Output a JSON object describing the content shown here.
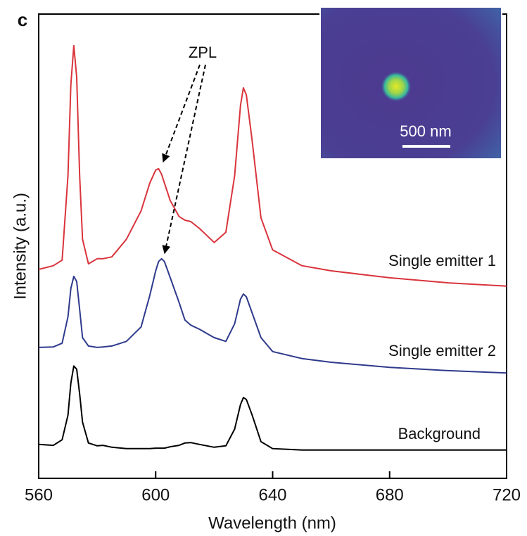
{
  "chart_data": {
    "type": "line",
    "panel_label": "c",
    "xlabel": "Wavelength (nm)",
    "ylabel": "Intensity (a.u.)",
    "x": [
      560,
      565,
      568,
      570,
      571,
      572,
      573,
      574,
      575,
      577,
      580,
      582,
      585,
      590,
      595,
      598,
      600,
      601,
      602,
      603,
      605,
      608,
      610,
      612,
      615,
      620,
      624,
      627,
      629,
      630,
      631,
      633,
      636,
      640,
      650,
      660,
      680,
      700,
      720
    ],
    "series": [
      {
        "name": "Single emitter 1",
        "color": "#d9343c",
        "values": [
          45.0,
          45.8,
          47.0,
          65.2,
          84.8,
          93.2,
          86.4,
          65.2,
          51.5,
          46.2,
          47.3,
          47.3,
          47.7,
          51.5,
          57.6,
          63.6,
          66.4,
          66.7,
          65.5,
          63.6,
          59.8,
          56.4,
          55.6,
          55.3,
          53.8,
          50.8,
          53.0,
          65.2,
          80.3,
          84.1,
          82.6,
          72.7,
          56.1,
          49.2,
          45.8,
          44.7,
          43.2,
          42.1,
          41.4
        ]
      },
      {
        "name": "Single emitter 2",
        "color": "#2e3a8c",
        "values": [
          28.2,
          28.3,
          29.1,
          34.8,
          40.9,
          43.5,
          42.4,
          36.4,
          30.3,
          28.5,
          28.2,
          28.3,
          28.5,
          29.5,
          32.6,
          39.4,
          44.7,
          46.7,
          47.3,
          46.7,
          43.2,
          37.9,
          34.1,
          33.0,
          32.1,
          30.3,
          29.5,
          33.3,
          38.6,
          39.7,
          39.1,
          35.6,
          30.3,
          27.3,
          25.8,
          25.0,
          23.9,
          23.2,
          22.7
        ]
      },
      {
        "name": "Background",
        "color": "#000000",
        "values": [
          7.3,
          7.1,
          8.3,
          13.6,
          20.5,
          24.2,
          23.5,
          18.2,
          12.1,
          7.6,
          7.0,
          7.1,
          6.7,
          6.4,
          6.4,
          6.4,
          6.5,
          6.5,
          6.5,
          6.5,
          6.8,
          7.1,
          7.6,
          7.7,
          7.3,
          6.7,
          7.0,
          10.6,
          15.9,
          17.4,
          17.0,
          13.6,
          7.9,
          6.4,
          6.1,
          6.1,
          6.1,
          6.1,
          6.1
        ]
      }
    ],
    "xlim": [
      560,
      720
    ],
    "xticks": [
      560,
      600,
      640,
      680,
      720
    ],
    "ylim": [
      0,
      100
    ],
    "annotation": "ZPL",
    "inset_scale_label": "500 nm"
  }
}
